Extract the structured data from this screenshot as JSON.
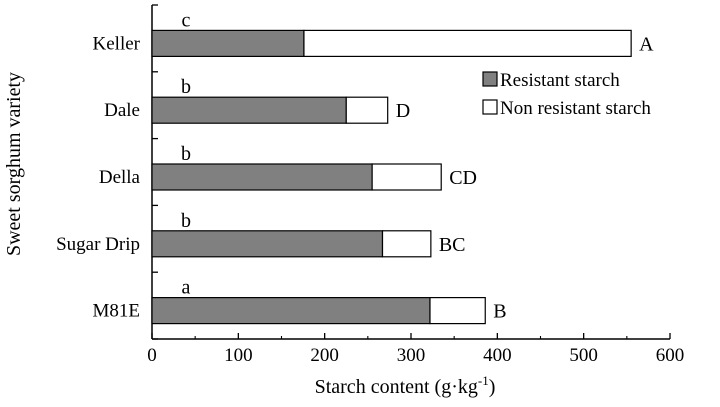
{
  "chart_data": {
    "type": "bar",
    "orientation": "horizontal",
    "stacked": true,
    "categories": [
      "Keller",
      "Dale",
      "Della",
      "Sugar Drip",
      "M81E"
    ],
    "series": [
      {
        "name": "Resistant starch",
        "values": [
          176,
          225,
          255,
          267,
          322
        ],
        "color": "#808080"
      },
      {
        "name": "Non resistant starch",
        "values": [
          379,
          48,
          80,
          56,
          64
        ],
        "color": "#ffffff"
      }
    ],
    "left_labels": [
      "c",
      "b",
      "b",
      "b",
      "a"
    ],
    "right_labels": [
      "A",
      "D",
      "CD",
      "BC",
      "B"
    ],
    "xlabel": "Starch content (g·kg",
    "xlabel_sup": "-1",
    "xlabel_close": ")",
    "ylabel": "Sweet sorghum variety",
    "xlim": [
      0,
      600
    ],
    "xticks": [
      "0",
      "100",
      "200",
      "300",
      "400",
      "500",
      "600"
    ],
    "legend_position": "right",
    "grid": false
  }
}
